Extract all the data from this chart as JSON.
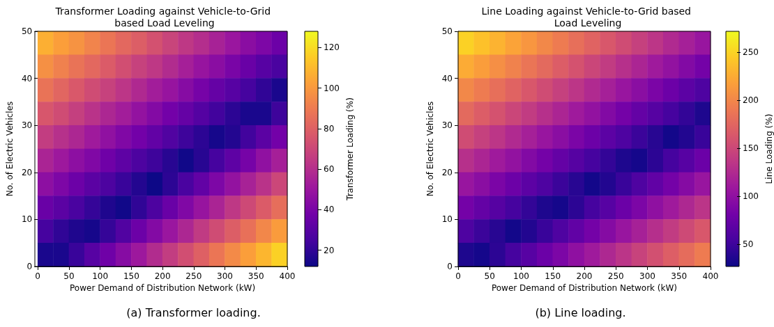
{
  "chart_data": [
    {
      "type": "heatmap",
      "title": "Transformer Loading against Vehicle-to-Grid based Load Leveling",
      "xlabel": "Power Demand of Distribution Network (kW)",
      "ylabel": "No. of Electric Vehicles",
      "clabel": "Transformer Loading (%)",
      "annotations": [
        "(a) Transformer loading."
      ],
      "xlim": [
        0,
        400
      ],
      "xticks": [
        0,
        50,
        100,
        150,
        200,
        250,
        300,
        350,
        400
      ],
      "ylim": [
        0,
        50
      ],
      "yticks": [
        0,
        10,
        20,
        30,
        40,
        50
      ],
      "clim": [
        12,
        128
      ],
      "cticks": [
        20,
        40,
        60,
        80,
        100,
        120
      ],
      "cells": [
        [
          107,
          102,
          98,
          93,
          88,
          83,
          79,
          74,
          69,
          64,
          60,
          55,
          50,
          45,
          41,
          36
        ],
        [
          97,
          92,
          87,
          83,
          78,
          73,
          68,
          64,
          59,
          54,
          49,
          45,
          40,
          35,
          30,
          26
        ],
        [
          87,
          82,
          77,
          72,
          68,
          63,
          58,
          53,
          49,
          44,
          39,
          34,
          30,
          25,
          20,
          15
        ],
        [
          76,
          72,
          67,
          62,
          57,
          53,
          48,
          43,
          38,
          34,
          29,
          24,
          19,
          15,
          15,
          23
        ],
        [
          66,
          61,
          57,
          52,
          47,
          42,
          38,
          33,
          28,
          23,
          19,
          14,
          17,
          24,
          31,
          38
        ],
        [
          56,
          51,
          46,
          42,
          37,
          32,
          27,
          23,
          18,
          13,
          18,
          25,
          32,
          39,
          47,
          54
        ],
        [
          46,
          41,
          36,
          31,
          27,
          22,
          17,
          12,
          19,
          26,
          33,
          41,
          48,
          55,
          62,
          70
        ],
        [
          35,
          31,
          26,
          21,
          16,
          13,
          20,
          27,
          35,
          42,
          49,
          56,
          64,
          71,
          78,
          85
        ],
        [
          25,
          20,
          16,
          14,
          21,
          28,
          36,
          43,
          50,
          57,
          65,
          72,
          79,
          86,
          94,
          101
        ],
        [
          15,
          15,
          22,
          30,
          37,
          44,
          51,
          59,
          66,
          73,
          80,
          88,
          95,
          102,
          109,
          117
        ]
      ]
    },
    {
      "type": "heatmap",
      "title": "Line Loading against Vehicle-to-Grid based Load Leveling",
      "xlabel": "Power Demand of Distribution Network (kW)",
      "ylabel": "No. of Electric Vehicles",
      "clabel": "Line Loading (%)",
      "annotations": [
        "(b) Line loading."
      ],
      "xlim": [
        0,
        400
      ],
      "xticks": [
        0,
        50,
        100,
        150,
        200,
        250,
        300,
        350,
        400
      ],
      "ylim": [
        0,
        50
      ],
      "yticks": [
        0,
        10,
        20,
        30,
        40,
        50
      ],
      "clim": [
        27,
        272
      ],
      "cticks": [
        50,
        100,
        150,
        200,
        250
      ],
      "cells": [
        [
          249,
          239,
          230,
          220,
          211,
          201,
          192,
          182,
          173,
          163,
          154,
          144,
          135,
          125,
          116,
          106
        ],
        [
          225,
          216,
          206,
          197,
          187,
          178,
          168,
          159,
          149,
          140,
          130,
          121,
          111,
          102,
          92,
          83
        ],
        [
          201,
          192,
          182,
          173,
          163,
          154,
          144,
          135,
          125,
          116,
          106,
          97,
          87,
          78,
          68,
          59
        ],
        [
          178,
          168,
          159,
          149,
          140,
          130,
          121,
          111,
          102,
          92,
          83,
          73,
          64,
          54,
          45,
          35
        ],
        [
          154,
          144,
          135,
          125,
          116,
          106,
          97,
          87,
          78,
          68,
          59,
          49,
          40,
          30,
          37,
          48
        ],
        [
          130,
          121,
          111,
          102,
          92,
          83,
          73,
          64,
          54,
          45,
          35,
          31,
          42,
          54,
          65,
          77
        ],
        [
          106,
          97,
          87,
          78,
          68,
          59,
          49,
          40,
          30,
          37,
          48,
          60,
          71,
          83,
          94,
          106
        ],
        [
          83,
          73,
          64,
          54,
          45,
          35,
          31,
          42,
          54,
          65,
          77,
          88,
          100,
          111,
          123,
          134
        ],
        [
          59,
          49,
          40,
          30,
          37,
          48,
          60,
          71,
          83,
          94,
          106,
          117,
          129,
          140,
          152,
          163
        ],
        [
          35,
          31,
          42,
          54,
          65,
          77,
          88,
          100,
          111,
          123,
          134,
          146,
          157,
          169,
          180,
          192
        ]
      ]
    }
  ]
}
